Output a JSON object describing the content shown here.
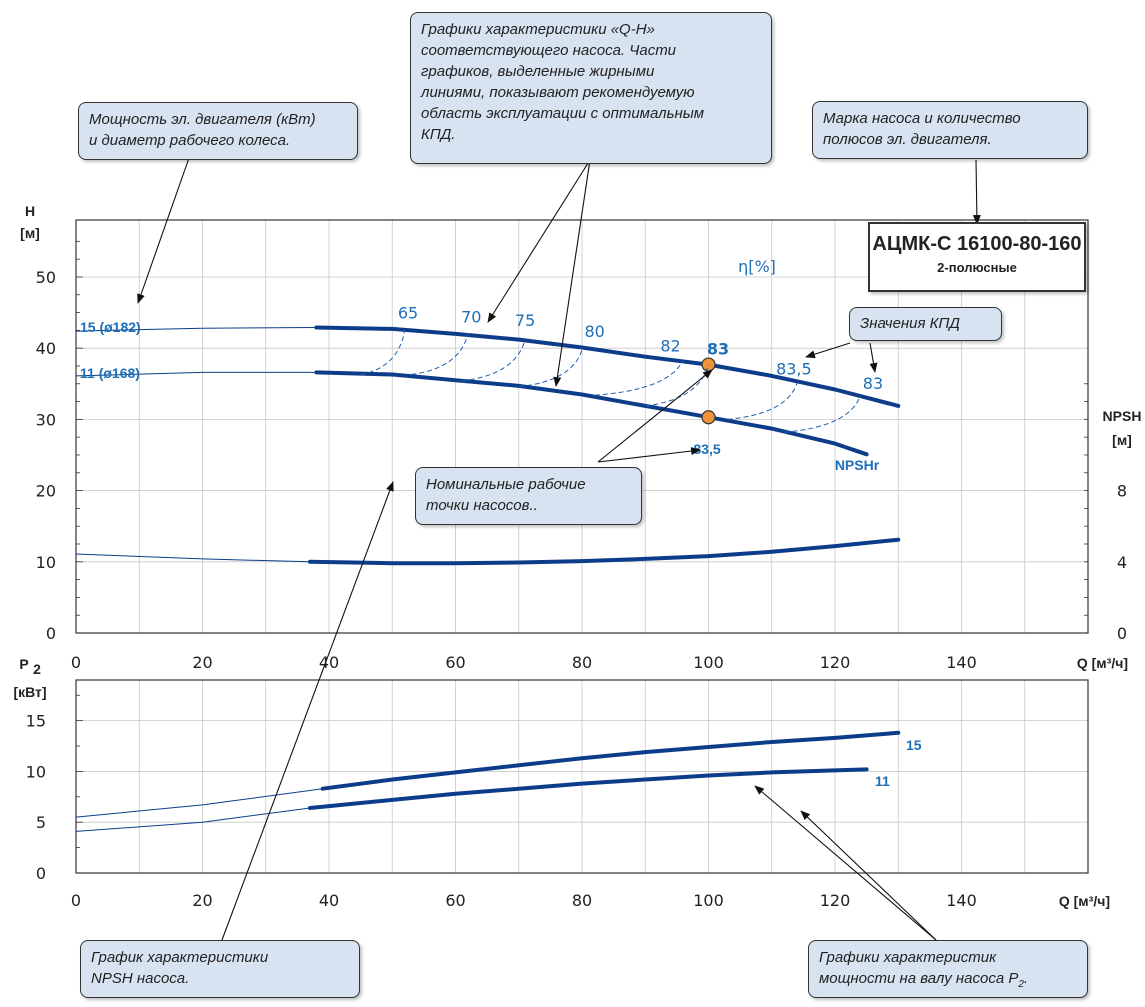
{
  "chart_data": [
    {
      "type": "line",
      "name": "qh",
      "ylabel": "H [м]",
      "ylabel_lines": [
        "H",
        "[м]"
      ],
      "xlabel": "Q [м³/ч]",
      "xlim": [
        0,
        160
      ],
      "ylim": [
        0,
        58
      ],
      "x_ticks": [
        0,
        20,
        40,
        60,
        80,
        100,
        120,
        140
      ],
      "y_ticks": [
        0,
        10,
        20,
        30,
        40,
        50
      ],
      "y2label_lines": [
        "NPSH",
        "[м]"
      ],
      "y2_ticks": [
        {
          "label": "0",
          "y": 0
        },
        {
          "label": "4",
          "y": 10
        },
        {
          "label": "8",
          "y": 20
        }
      ],
      "grid": true,
      "eta_label": "η[%]",
      "series": [
        {
          "name": "15 (ø182)",
          "label": "15 (ø182)",
          "thin": [
            [
              0,
              42.4
            ],
            [
              20,
              42.8
            ],
            [
              38,
              42.9
            ]
          ],
          "thick": [
            [
              38,
              42.9
            ],
            [
              50,
              42.7
            ],
            [
              60,
              42.0
            ],
            [
              70,
              41.2
            ],
            [
              80,
              40.1
            ],
            [
              90,
              38.8
            ],
            [
              100,
              37.7
            ],
            [
              110,
              36.1
            ],
            [
              120,
              34.2
            ],
            [
              130,
              31.9
            ]
          ]
        },
        {
          "name": "11 (ø168)",
          "label": "11 (ø168)",
          "thin": [
            [
              0,
              36.1
            ],
            [
              20,
              36.6
            ],
            [
              38,
              36.6
            ]
          ],
          "thick": [
            [
              38,
              36.6
            ],
            [
              50,
              36.3
            ],
            [
              60,
              35.5
            ],
            [
              70,
              34.7
            ],
            [
              80,
              33.5
            ],
            [
              90,
              31.9
            ],
            [
              100,
              30.3
            ],
            [
              110,
              28.7
            ],
            [
              120,
              26.6
            ],
            [
              125,
              25.1
            ]
          ]
        },
        {
          "name": "NPSHr",
          "label": "NPSHr",
          "thin": [
            [
              0,
              11.1
            ],
            [
              20,
              10.4
            ],
            [
              37,
              10.0
            ]
          ],
          "thick": [
            [
              37,
              10.0
            ],
            [
              50,
              9.8
            ],
            [
              60,
              9.8
            ],
            [
              70,
              9.9
            ],
            [
              80,
              10.1
            ],
            [
              90,
              10.4
            ],
            [
              100,
              10.8
            ],
            [
              110,
              11.4
            ],
            [
              120,
              12.2
            ],
            [
              130,
              13.1
            ]
          ]
        }
      ],
      "efficiency_isolines": [
        {
          "label": "65",
          "from": [
            45,
            36.3
          ],
          "to": [
            52,
            42.6
          ],
          "label_at": [
            52.5,
            44.2
          ]
        },
        {
          "label": "70",
          "from": [
            53,
            36.3
          ],
          "to": [
            62,
            42.1
          ],
          "label_at": [
            62.5,
            43.6
          ]
        },
        {
          "label": "75",
          "from": [
            61,
            35.4
          ],
          "to": [
            71,
            41.2
          ],
          "label_at": [
            71,
            43.1
          ]
        },
        {
          "label": "80",
          "from": [
            70,
            34.6
          ],
          "to": [
            80,
            39.8
          ],
          "label_at": [
            82,
            41.6
          ]
        },
        {
          "label": "82",
          "from": [
            82,
            33.4
          ],
          "to": [
            96,
            38.4
          ],
          "label_at": [
            94,
            39.5
          ]
        },
        {
          "label": "83",
          "from": [
            90,
            31.9
          ],
          "to": [
            100,
            37.7
          ],
          "label_at": [
            101.5,
            39.1
          ],
          "bold": true
        },
        {
          "label": "83,5",
          "from": [
            103,
            30.0
          ],
          "to": [
            114,
            35.1
          ],
          "label_at": [
            113.5,
            36.3
          ]
        },
        {
          "label": "83",
          "from": [
            112,
            28.2
          ],
          "to": [
            124,
            33.3
          ],
          "label_at": [
            126,
            34.3
          ]
        }
      ],
      "nominal_points": [
        {
          "x": 100,
          "y": 37.7,
          "label": "83"
        },
        {
          "x": 100,
          "y": 30.3,
          "label": "83,5"
        }
      ]
    },
    {
      "type": "line",
      "name": "power",
      "ylabel": "P2 [кВт]",
      "ylabel_main": "P",
      "ylabel_sub": "2",
      "ylabel_unit": "[кВт]",
      "xlabel": "Q [м³/ч]",
      "xlim": [
        0,
        160
      ],
      "ylim": [
        0,
        19
      ],
      "x_ticks": [
        0,
        20,
        40,
        60,
        80,
        100,
        120,
        140
      ],
      "y_ticks": [
        0,
        5,
        10,
        15
      ],
      "grid": true,
      "series": [
        {
          "name": "15",
          "label": "15",
          "thin": [
            [
              0,
              5.5
            ],
            [
              20,
              6.7
            ],
            [
              39,
              8.3
            ]
          ],
          "thick": [
            [
              39,
              8.3
            ],
            [
              50,
              9.2
            ],
            [
              60,
              9.9
            ],
            [
              70,
              10.6
            ],
            [
              80,
              11.3
            ],
            [
              90,
              11.9
            ],
            [
              100,
              12.4
            ],
            [
              110,
              12.9
            ],
            [
              120,
              13.3
            ],
            [
              130,
              13.8
            ]
          ]
        },
        {
          "name": "11",
          "label": "11",
          "thin": [
            [
              0,
              4.1
            ],
            [
              20,
              5.0
            ],
            [
              37,
              6.4
            ]
          ],
          "thick": [
            [
              37,
              6.4
            ],
            [
              50,
              7.2
            ],
            [
              60,
              7.8
            ],
            [
              70,
              8.3
            ],
            [
              80,
              8.8
            ],
            [
              90,
              9.2
            ],
            [
              100,
              9.6
            ],
            [
              110,
              9.9
            ],
            [
              120,
              10.1
            ],
            [
              125,
              10.2
            ]
          ]
        }
      ]
    }
  ],
  "model": {
    "title": "АЦМК-С 16100-80-160",
    "subtitle": "2-полюсные"
  },
  "callouts": {
    "power_diameter": [
      "Мощность эл. двигателя (кВт)",
      "и диаметр рабочего колеса."
    ],
    "qh_curves": [
      "Графики характеристики «Q-H»",
      "соответствующего насоса. Части",
      "графиков, выделенные жирными",
      "линиями, показывают рекомендуемую",
      "область эксплуатации с оптимальным",
      "КПД."
    ],
    "model_info": [
      "Марка насоса и количество",
      "полюсов эл. двигателя."
    ],
    "efficiency": "Значения КПД",
    "nominal": [
      "Номинальные рабочие",
      "точки насосов.."
    ],
    "npsh": [
      "График характеристики",
      "NPSH насоса."
    ],
    "shaft_power": [
      "Графики характеристик",
      "мощности на валу насоса P"
    ],
    "shaft_power_sub": "2",
    "shaft_power_end": "."
  },
  "colors": {
    "curve": "#0d3d8a",
    "label_blue": "#1f6fb8",
    "dot": "#f0923a",
    "box_bg": "#d7e3f1",
    "grid": "#c8c8c8"
  }
}
